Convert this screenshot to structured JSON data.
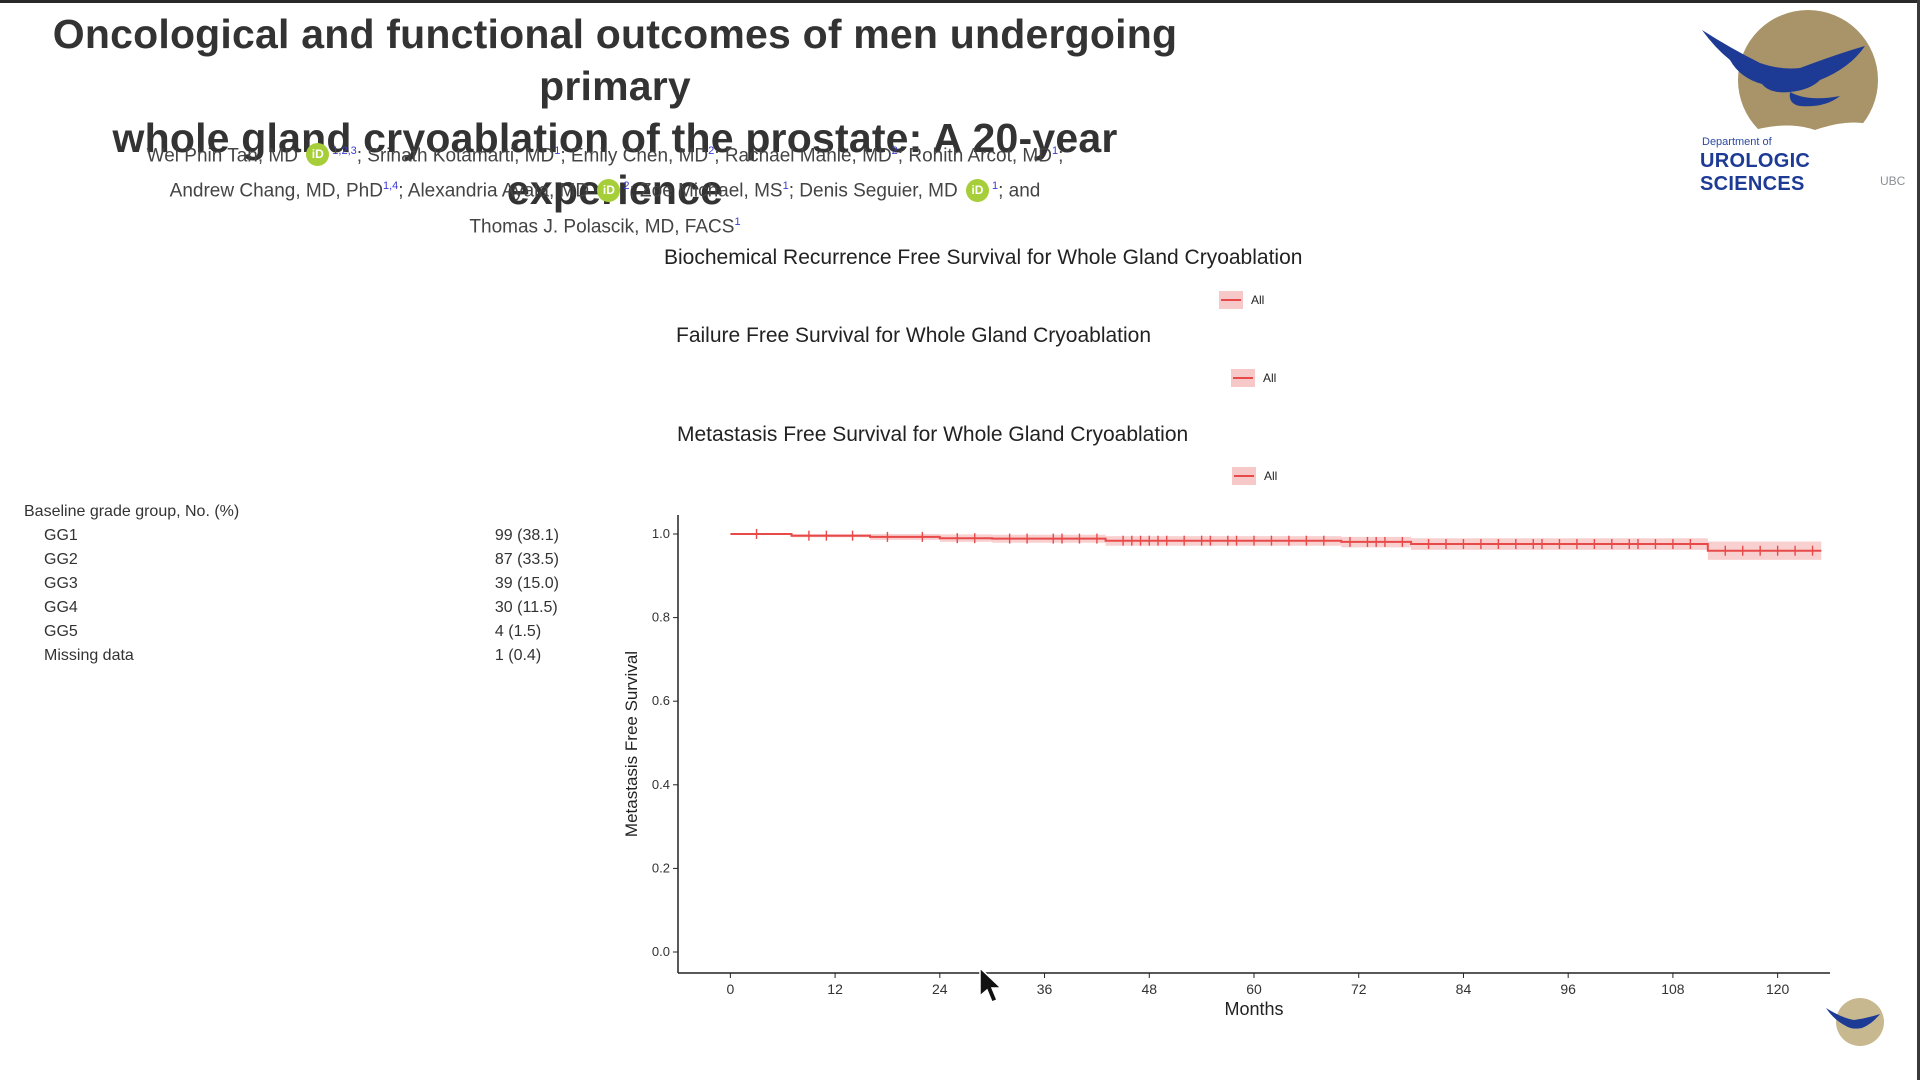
{
  "title": {
    "line1": "Oncological and functional outcomes of men undergoing primary",
    "line2": "whole gland cryoablation of the prostate: A 20-year experience"
  },
  "authors": {
    "a1": "Wei Phin Tan, MD",
    "a1_sup": "1,2,3",
    "a2": "; Srinath Kotamarti, MD",
    "a2_sup": "1",
    "a3": "; Emily Chen, MD",
    "a3_sup": "2",
    "a4": "; Rachael Mahle, MD",
    "a4_sup": "2",
    "a5": "; Rohith Arcot, MD",
    "a5_sup": "1",
    "a5_end": ";",
    "a6": "Andrew Chang, MD, PhD",
    "a6_sup": "1,4",
    "a7": "; Alexandria Ayala, MD",
    "a7_sup": "2",
    "a8": "; Zoe Michael, MS",
    "a8_sup": "1",
    "a9": "; Denis Seguier, MD",
    "a9_sup": "1",
    "a9_end": "; and",
    "a10": "Thomas J. Polascik, MD, FACS",
    "a10_sup": "1",
    "orcid_label": "iD"
  },
  "logo": {
    "dept": "Department of",
    "name": "UROLOGIC SCIENCES",
    "org": "UBC",
    "icon": "eagle-icon",
    "colors": {
      "gold": "#a89468",
      "blue": "#1d3a95"
    }
  },
  "chart_titles": {
    "bcr": "Biochemical Recurrence Free Survival for Whole Gland Cryoablation",
    "ffs": "Failure Free Survival for Whole Gland Cryoablation",
    "mfs": "Metastasis Free Survival for Whole Gland Cryoablation"
  },
  "legend_label": "All",
  "baseline": {
    "header": "Baseline grade group, No. (%)",
    "rows": [
      {
        "label": "GG1",
        "value": "99 (38.1)"
      },
      {
        "label": "GG2",
        "value": "87 (33.5)"
      },
      {
        "label": "GG3",
        "value": "39 (15.0)"
      },
      {
        "label": "GG4",
        "value": "30 (11.5)"
      },
      {
        "label": "GG5",
        "value": "4 (1.5)"
      },
      {
        "label": "Missing data",
        "value": "1 (0.4)"
      }
    ]
  },
  "chart_data": {
    "type": "line",
    "title": "Metastasis Free Survival for Whole Gland Cryoablation",
    "xlabel": "Months",
    "ylabel": "Metastasis Free Survival",
    "xlim": [
      -6,
      126
    ],
    "ylim": [
      0,
      1.0
    ],
    "xticks": [
      0,
      12,
      24,
      36,
      48,
      60,
      72,
      84,
      96,
      108,
      120
    ],
    "yticks": [
      "0.0",
      "0.2",
      "0.4",
      "0.6",
      "0.8",
      "1.0"
    ],
    "ytick_values": [
      0,
      0.2,
      0.4,
      0.6,
      0.8,
      1.0
    ],
    "legend": "top",
    "series": [
      {
        "name": "All",
        "color": "#e84a4a",
        "band_color": "#f9d0d0",
        "steps": [
          [
            0,
            1.0
          ],
          [
            7,
            0.996
          ],
          [
            16,
            0.993
          ],
          [
            24,
            0.99
          ],
          [
            30,
            0.989
          ],
          [
            43,
            0.984
          ],
          [
            70,
            0.981
          ],
          [
            78,
            0.976
          ],
          [
            112,
            0.96
          ],
          [
            125,
            0.96
          ]
        ],
        "band": [
          [
            0,
            1.0,
            1.0
          ],
          [
            7,
            0.992,
            1.0
          ],
          [
            16,
            0.986,
            1.0
          ],
          [
            24,
            0.981,
            0.999
          ],
          [
            30,
            0.979,
            0.998
          ],
          [
            43,
            0.972,
            0.995
          ],
          [
            70,
            0.968,
            0.993
          ],
          [
            78,
            0.962,
            0.99
          ],
          [
            112,
            0.938,
            0.982
          ],
          [
            125,
            0.938,
            0.982
          ]
        ],
        "censor_marks": [
          3,
          9,
          11,
          14,
          18,
          22,
          26,
          28,
          32,
          34,
          37,
          38,
          40,
          42,
          45,
          46,
          47,
          48,
          49,
          50,
          52,
          54,
          55,
          57,
          58,
          60,
          62,
          64,
          66,
          68,
          71,
          73,
          74,
          75,
          77,
          80,
          82,
          84,
          86,
          88,
          90,
          92,
          93,
          95,
          97,
          99,
          101,
          103,
          104,
          106,
          108,
          110,
          114,
          116,
          118,
          120,
          122,
          124
        ]
      }
    ]
  }
}
